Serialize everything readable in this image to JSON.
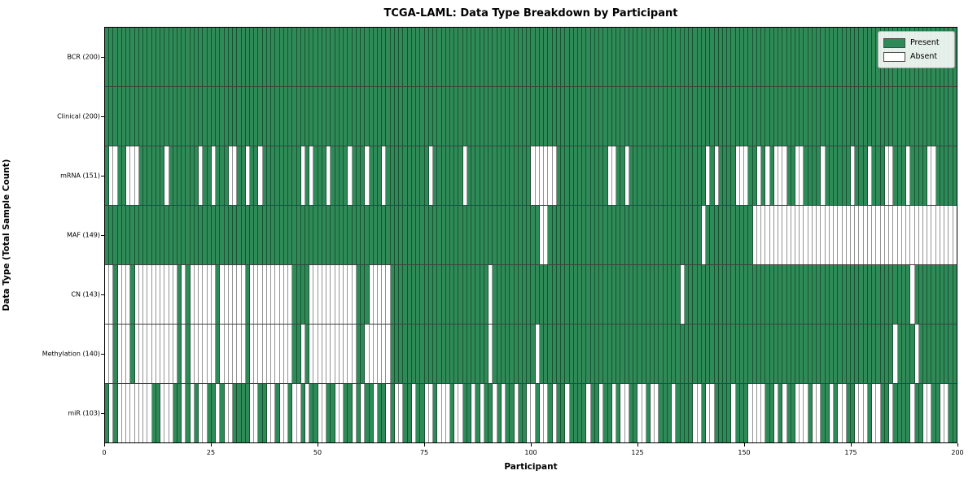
{
  "title": "TCGA-LAML: Data Type Breakdown by Participant",
  "xlabel": "Participant",
  "ylabel": "Data Type (Total Sample Count)",
  "legend": {
    "items": [
      {
        "label": "Present",
        "color": "#2e8b57"
      },
      {
        "label": "Absent",
        "color": "#ffffff"
      }
    ]
  },
  "colors": {
    "present": "#2e8b57",
    "absent": "#ffffff",
    "cell_edge": "rgba(0,0,0,0.42)"
  },
  "chart_data": {
    "type": "heatmap",
    "title": "TCGA-LAML: Data Type Breakdown by Participant",
    "xlabel": "Participant",
    "ylabel": "Data Type (Total Sample Count)",
    "x_range": [
      0,
      200
    ],
    "x_ticks": [
      0,
      25,
      50,
      75,
      100,
      125,
      150,
      175,
      200
    ],
    "n_participants": 200,
    "legend_position": "upper right",
    "grid": "cell-borders",
    "value_meaning": {
      "1": "Present",
      "0": "Absent"
    },
    "rows": [
      {
        "label": "BCR (200)",
        "name": "BCR",
        "present_count": 200,
        "absent": []
      },
      {
        "label": "Clinical (200)",
        "name": "Clinical",
        "present_count": 200,
        "absent": []
      },
      {
        "label": "mRNA (151)",
        "name": "mRNA",
        "present_count": 151,
        "absent": [
          1,
          2,
          5,
          6,
          7,
          14,
          22,
          25,
          29,
          30,
          33,
          36,
          46,
          48,
          52,
          57,
          61,
          65,
          76,
          84,
          100,
          101,
          102,
          103,
          104,
          105,
          118,
          119,
          122,
          141,
          143,
          148,
          149,
          150,
          153,
          155,
          157,
          158,
          159,
          162,
          163,
          168,
          175,
          179,
          183,
          184,
          188,
          193,
          194
        ]
      },
      {
        "label": "MAF (149)",
        "name": "MAF",
        "present_count": 149,
        "absent": [
          102,
          103,
          140,
          152,
          153,
          154,
          155,
          156,
          157,
          158,
          159,
          160,
          161,
          162,
          163,
          164,
          165,
          166,
          167,
          168,
          169,
          170,
          171,
          172,
          173,
          174,
          175,
          176,
          177,
          178,
          179,
          180,
          181,
          182,
          183,
          184,
          185,
          186,
          187,
          188,
          189,
          190,
          191,
          192,
          193,
          194,
          195,
          196,
          197,
          198,
          199
        ]
      },
      {
        "label": "CN (143)",
        "name": "CN",
        "present_count": 143,
        "absent": [
          0,
          1,
          3,
          4,
          5,
          7,
          8,
          9,
          10,
          11,
          12,
          13,
          14,
          15,
          16,
          18,
          20,
          21,
          22,
          23,
          24,
          25,
          27,
          28,
          29,
          30,
          31,
          32,
          34,
          35,
          36,
          37,
          38,
          39,
          40,
          41,
          42,
          43,
          48,
          49,
          50,
          51,
          52,
          53,
          54,
          55,
          56,
          57,
          58,
          62,
          63,
          64,
          65,
          66,
          90,
          135,
          189
        ]
      },
      {
        "label": "Methylation (140)",
        "name": "Methylation",
        "present_count": 140,
        "absent": [
          0,
          1,
          3,
          4,
          5,
          7,
          8,
          9,
          10,
          11,
          12,
          13,
          14,
          15,
          16,
          18,
          20,
          21,
          22,
          23,
          24,
          25,
          27,
          28,
          29,
          30,
          31,
          32,
          34,
          35,
          36,
          37,
          38,
          39,
          40,
          41,
          42,
          43,
          46,
          48,
          49,
          50,
          51,
          52,
          53,
          54,
          55,
          56,
          57,
          58,
          61,
          62,
          63,
          64,
          65,
          66,
          90,
          101,
          185,
          190
        ]
      },
      {
        "label": "miR (103)",
        "name": "miR",
        "present_count": 103,
        "absent": [
          1,
          3,
          4,
          5,
          6,
          7,
          8,
          9,
          10,
          13,
          14,
          15,
          18,
          20,
          22,
          23,
          26,
          28,
          29,
          34,
          35,
          38,
          39,
          41,
          42,
          44,
          45,
          47,
          50,
          51,
          54,
          55,
          58,
          60,
          63,
          66,
          68,
          69,
          72,
          75,
          76,
          78,
          79,
          80,
          82,
          83,
          86,
          88,
          91,
          93,
          96,
          99,
          100,
          102,
          103,
          105,
          108,
          113,
          116,
          119,
          121,
          122,
          125,
          126,
          128,
          129,
          133,
          138,
          139,
          141,
          142,
          147,
          151,
          152,
          153,
          154,
          157,
          159,
          162,
          163,
          164,
          166,
          167,
          170,
          172,
          173,
          176,
          177,
          178,
          180,
          181,
          184,
          189,
          192,
          193,
          196,
          197
        ]
      }
    ]
  }
}
